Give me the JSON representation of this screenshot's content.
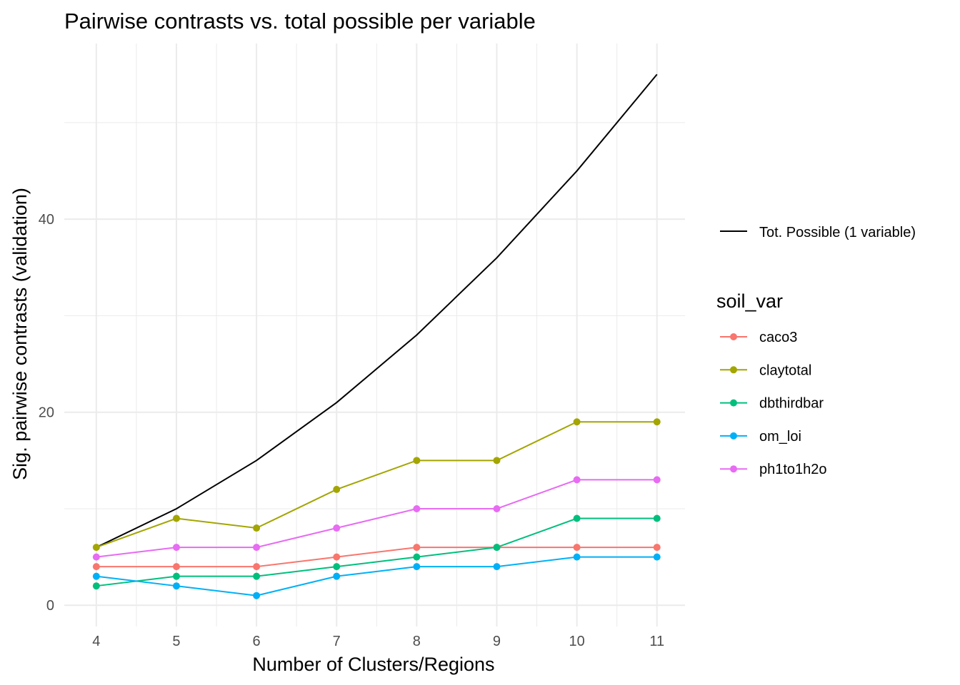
{
  "chart_data": {
    "type": "line",
    "title": "Pairwise contrasts vs. total possible per variable",
    "xlabel": "Number of Clusters/Regions",
    "ylabel": "Sig. pairwise contrasts (validation)",
    "x": [
      4,
      5,
      6,
      7,
      8,
      9,
      10,
      11
    ],
    "xlim": [
      3.6,
      11.35
    ],
    "ylim": [
      -2.2,
      58.2
    ],
    "xticks": [
      "4",
      "5",
      "6",
      "7",
      "8",
      "9",
      "10",
      "11"
    ],
    "yticks": [
      "0",
      "20",
      "40"
    ],
    "ytick_values": [
      0,
      20,
      40
    ],
    "grid": true,
    "reference_line": {
      "name": "Tot. Possible (1 variable)",
      "color": "#000000",
      "values": [
        6,
        10,
        15,
        21,
        28,
        36,
        45,
        55
      ]
    },
    "legend_title": "soil_var",
    "legend_position": "right",
    "series": [
      {
        "name": "caco3",
        "color": "#F8766D",
        "values": [
          4,
          4,
          4,
          5,
          6,
          6,
          6,
          6
        ]
      },
      {
        "name": "claytotal",
        "color": "#A3A500",
        "values": [
          6,
          9,
          8,
          12,
          15,
          15,
          19,
          19
        ]
      },
      {
        "name": "dbthirdbar",
        "color": "#00BF7D",
        "values": [
          2,
          3,
          3,
          4,
          5,
          6,
          9,
          9
        ]
      },
      {
        "name": "om_loi",
        "color": "#00B0F6",
        "values": [
          3,
          2,
          1,
          3,
          4,
          4,
          5,
          5
        ]
      },
      {
        "name": "ph1to1h2o",
        "color": "#E76BF3",
        "values": [
          5,
          6,
          6,
          8,
          10,
          10,
          13,
          13
        ]
      }
    ]
  }
}
